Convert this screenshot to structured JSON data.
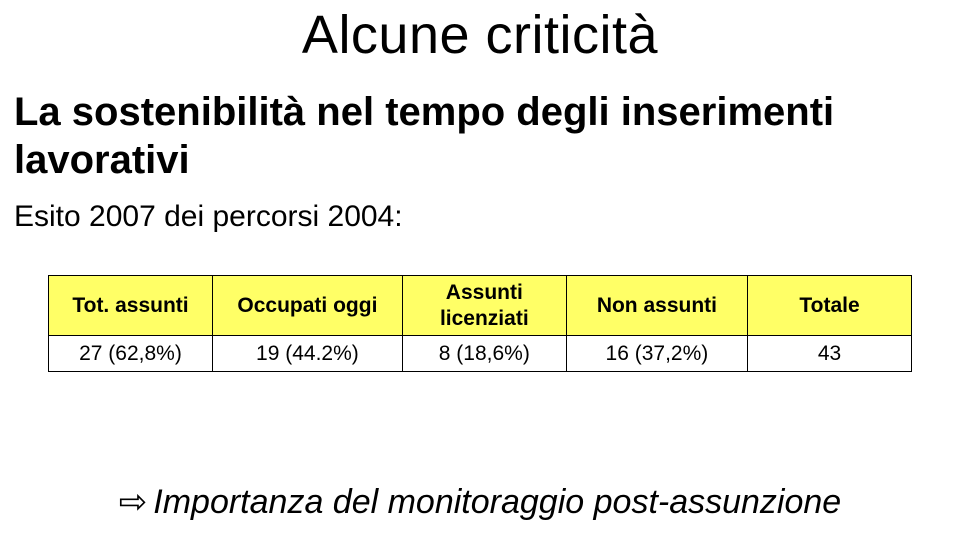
{
  "title": "Alcune criticità",
  "subtitle": "La sostenibilità nel tempo degli inserimenti lavorativi",
  "caption": "Esito 2007 dei percorsi 2004:",
  "table": {
    "header_bg": "#ffff66",
    "border_color": "#000000",
    "columns": [
      {
        "label_line1": "Tot. assunti",
        "label_line2": ""
      },
      {
        "label_line1": "Occupati oggi",
        "label_line2": ""
      },
      {
        "label_line1": "Assunti",
        "label_line2": "licenziati"
      },
      {
        "label_line1": "Non assunti",
        "label_line2": ""
      },
      {
        "label_line1": "Totale",
        "label_line2": ""
      }
    ],
    "row": [
      "27 (62,8%)",
      "19 (44.2%)",
      "8 (18,6%)",
      "16 (37,2%)",
      "43"
    ]
  },
  "footer_arrow": "⇨",
  "footer": "Importanza del monitoraggio post-assunzione"
}
